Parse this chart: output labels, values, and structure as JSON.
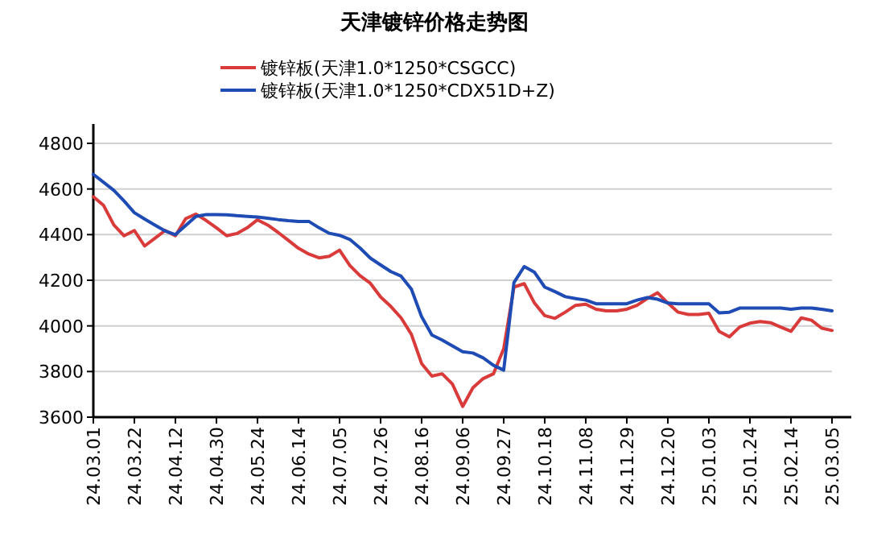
{
  "chart_data": {
    "type": "line",
    "title": "天津镀锌价格走势图",
    "categories": [
      "24.03.01",
      null,
      null,
      null,
      "24.03.22",
      null,
      null,
      null,
      "24.04.12",
      null,
      null,
      null,
      "24.04.30",
      null,
      null,
      null,
      "24.05.24",
      null,
      null,
      null,
      "24.06.14",
      null,
      null,
      null,
      "24.07.05",
      null,
      null,
      null,
      "24.07.26",
      null,
      null,
      null,
      "24.08.16",
      null,
      null,
      null,
      "24.09.06",
      null,
      null,
      null,
      "24.09.27",
      null,
      null,
      null,
      "24.10.18",
      null,
      null,
      null,
      "24.11.08",
      null,
      null,
      null,
      "24.11.29",
      null,
      null,
      null,
      "24.12.20",
      null,
      null,
      null,
      "25.01.03",
      null,
      null,
      null,
      "25.01.24",
      null,
      null,
      null,
      "25.02.14",
      null,
      null,
      null,
      "25.03.05"
    ],
    "series": [
      {
        "name": "镀锌板(天津1.0*1250*CSGCC)",
        "color": "#d93a3a",
        "values": [
          4566,
          4528,
          4442,
          4395,
          4418,
          4350,
          4384,
          4418,
          4395,
          4470,
          4490,
          4462,
          4430,
          4395,
          4405,
          4430,
          4465,
          4442,
          4410,
          4375,
          4340,
          4315,
          4298,
          4305,
          4332,
          4265,
          4220,
          4187,
          4127,
          4085,
          4035,
          3963,
          3835,
          3780,
          3790,
          3745,
          3647,
          3729,
          3769,
          3790,
          3900,
          4170,
          4185,
          4100,
          4045,
          4033,
          4060,
          4090,
          4095,
          4073,
          4066,
          4066,
          4073,
          4090,
          4120,
          4145,
          4100,
          4060,
          4050,
          4050,
          4055,
          3976,
          3952,
          3995,
          4012,
          4019,
          4014,
          3995,
          3976,
          4035,
          4025,
          3990,
          3980
        ]
      },
      {
        "name": "镀锌板(天津1.0*1250*CDX51D+Z)",
        "color": "#1f4bb4",
        "values": [
          4664,
          4629,
          4594,
          4547,
          4496,
          4468,
          4442,
          4416,
          4400,
          4440,
          4480,
          4488,
          4488,
          4487,
          4483,
          4480,
          4477,
          4472,
          4466,
          4461,
          4458,
          4458,
          4430,
          4406,
          4397,
          4379,
          4341,
          4297,
          4267,
          4238,
          4218,
          4161,
          4040,
          3960,
          3938,
          3912,
          3887,
          3881,
          3860,
          3827,
          3806,
          4190,
          4260,
          4235,
          4170,
          4150,
          4128,
          4120,
          4113,
          4097,
          4097,
          4097,
          4097,
          4113,
          4124,
          4117,
          4100,
          4097,
          4097,
          4097,
          4097,
          4057,
          4060,
          4078,
          4078,
          4078,
          4078,
          4078,
          4073,
          4078,
          4078,
          4073,
          4066
        ]
      }
    ],
    "ylim": [
      3600,
      4800
    ],
    "yticks": [
      3600,
      3800,
      4000,
      4200,
      4400,
      4600,
      4800
    ],
    "grid": "y",
    "legend": "top",
    "marker": "none",
    "line_style": "solid"
  }
}
